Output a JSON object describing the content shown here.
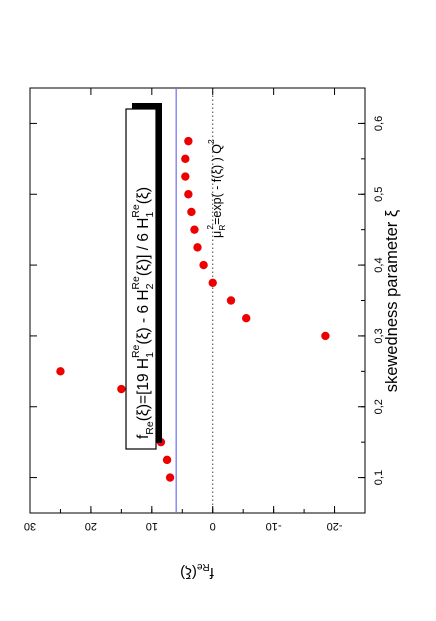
{
  "chart_data": {
    "type": "scatter",
    "orientation": "rotated-90-ccw",
    "xlabel": "skewedness parameter ξ",
    "ylabel_main": "f",
    "ylabel_sub": "Re",
    "ylabel_arg": "(ξ)",
    "xlim": [
      0.05,
      0.65
    ],
    "ylim": [
      -25,
      30
    ],
    "xticks": [
      "0,1",
      "0,2",
      "0,3",
      "0,4",
      "0,5",
      "0,6"
    ],
    "xtick_values": [
      0.1,
      0.2,
      0.3,
      0.4,
      0.5,
      0.6
    ],
    "yticks": [
      "30",
      "20",
      "10",
      "0",
      "-10",
      "-20"
    ],
    "ytick_values": [
      30,
      20,
      10,
      0,
      -10,
      -20
    ],
    "reference_line": {
      "value": 6,
      "color": "#6f6ff0",
      "style": "solid"
    },
    "zero_line": {
      "value": 0,
      "style": "dotted"
    },
    "marker_color": "#ee0000",
    "points": [
      {
        "x": 0.1,
        "y": 7.0
      },
      {
        "x": 0.125,
        "y": 7.5
      },
      {
        "x": 0.15,
        "y": 8.5
      },
      {
        "x": 0.175,
        "y": 9.5
      },
      {
        "x": 0.2,
        "y": 11.5
      },
      {
        "x": 0.225,
        "y": 15.0
      },
      {
        "x": 0.25,
        "y": 25.0
      },
      {
        "x": 0.3,
        "y": -18.5
      },
      {
        "x": 0.325,
        "y": -5.5
      },
      {
        "x": 0.35,
        "y": -3.0
      },
      {
        "x": 0.375,
        "y": 0.0
      },
      {
        "x": 0.4,
        "y": 1.5
      },
      {
        "x": 0.425,
        "y": 2.5
      },
      {
        "x": 0.45,
        "y": 3.0
      },
      {
        "x": 0.475,
        "y": 3.5
      },
      {
        "x": 0.5,
        "y": 4.0
      },
      {
        "x": 0.525,
        "y": 4.5
      },
      {
        "x": 0.55,
        "y": 4.5
      },
      {
        "x": 0.575,
        "y": 4.0
      }
    ],
    "formula_box": {
      "p1": "f",
      "s1": "Re",
      "p2": "(ξ)=[19 H",
      "s2": "1",
      "sup2": "Re",
      "p3": "(ξ) - 6 H",
      "s3": "2",
      "sup3": "Re",
      "p4": "(ξ)] / 6 H",
      "s4": "1",
      "sup4": "Re",
      "p5": "(ξ)"
    },
    "annotation": {
      "p1": "μ",
      "s1": "R",
      "sup1": "2",
      "p2": "=exp( - f(ξ) ) Q",
      "sup2": "2"
    }
  }
}
